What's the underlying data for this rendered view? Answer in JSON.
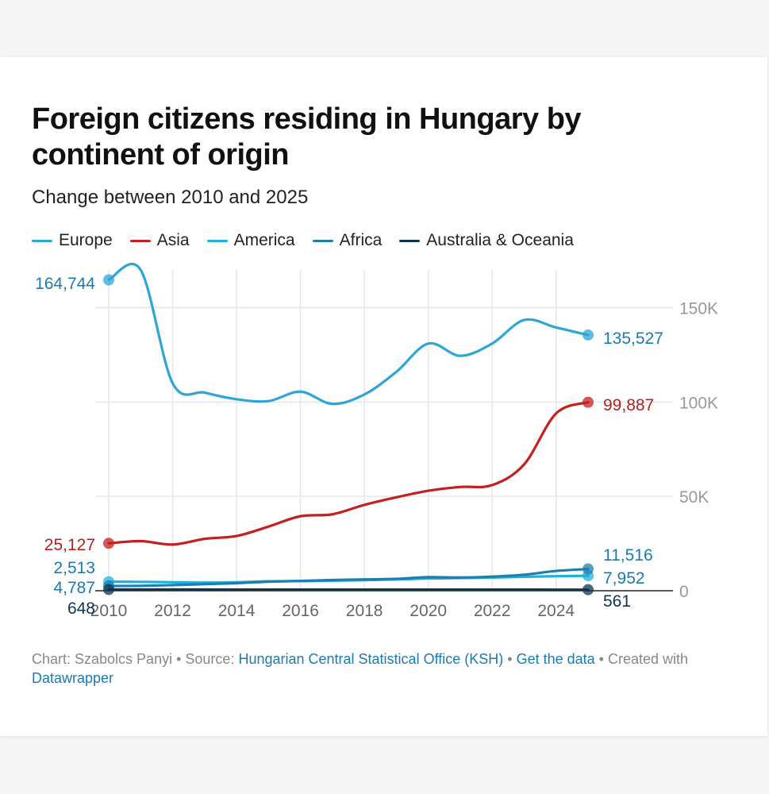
{
  "title": "Foreign citizens residing in Hungary by continent of origin",
  "subtitle": "Change between 2010 and 2025",
  "footer": {
    "chart_by": "Chart: Szabolcs Panyi",
    "sep1": " • ",
    "source_label": "Source: ",
    "source_link": "Hungarian Central Statistical Office (KSH)",
    "sep2": " • ",
    "get_data": "Get the data",
    "sep3": " • Created with ",
    "tool": "Datawrapper"
  },
  "chart_data": {
    "type": "line",
    "title": "Foreign citizens residing in Hungary by continent of origin",
    "subtitle": "Change between 2010 and 2025",
    "xlabel": "",
    "ylabel": "",
    "x": [
      2010,
      2011,
      2012,
      2013,
      2014,
      2015,
      2016,
      2017,
      2018,
      2019,
      2020,
      2021,
      2022,
      2023,
      2024,
      2025
    ],
    "xticks": [
      "2010",
      "2012",
      "2014",
      "2016",
      "2018",
      "2020",
      "2022",
      "2024"
    ],
    "xlim": [
      2010,
      2025
    ],
    "ylim": [
      0,
      170000
    ],
    "yticks": [
      0,
      50000,
      100000,
      150000
    ],
    "ytick_labels": [
      "0",
      "50K",
      "100K",
      "150K"
    ],
    "grid": true,
    "legend_position": "top-left",
    "series": [
      {
        "name": "Europe",
        "color": "#2ea6d5",
        "values": [
          164744,
          170000,
          110000,
          105000,
          101500,
          100500,
          105500,
          99000,
          104000,
          116000,
          131000,
          124500,
          131000,
          143500,
          139500,
          135527
        ],
        "start_label": "164,744",
        "end_label": "135,527"
      },
      {
        "name": "Asia",
        "color": "#c51f1f",
        "values": [
          25127,
          26300,
          24500,
          27500,
          29000,
          34000,
          39500,
          40500,
          45500,
          49500,
          53000,
          55000,
          56000,
          67000,
          94000,
          99887
        ],
        "start_label": "25,127",
        "end_label": "99,887"
      },
      {
        "name": "America",
        "color": "#1eb0de",
        "values": [
          4787,
          4700,
          4500,
          4300,
          4500,
          5000,
          5100,
          5300,
          5600,
          6000,
          6500,
          6700,
          7000,
          7400,
          7700,
          7952
        ],
        "start_label": "4,787",
        "end_label": "7,952"
      },
      {
        "name": "Africa",
        "color": "#1e7fae",
        "values": [
          2513,
          2600,
          3000,
          3500,
          4000,
          4800,
          5200,
          5700,
          6000,
          6300,
          7200,
          7000,
          7500,
          8500,
          10500,
          11516
        ],
        "start_label": "2,513",
        "end_label": "11,516"
      },
      {
        "name": "Australia & Oceania",
        "color": "#0d3550",
        "values": [
          648,
          640,
          630,
          620,
          610,
          600,
          590,
          585,
          580,
          575,
          570,
          568,
          566,
          564,
          562,
          561
        ],
        "start_label": "648",
        "end_label": "561"
      }
    ]
  }
}
